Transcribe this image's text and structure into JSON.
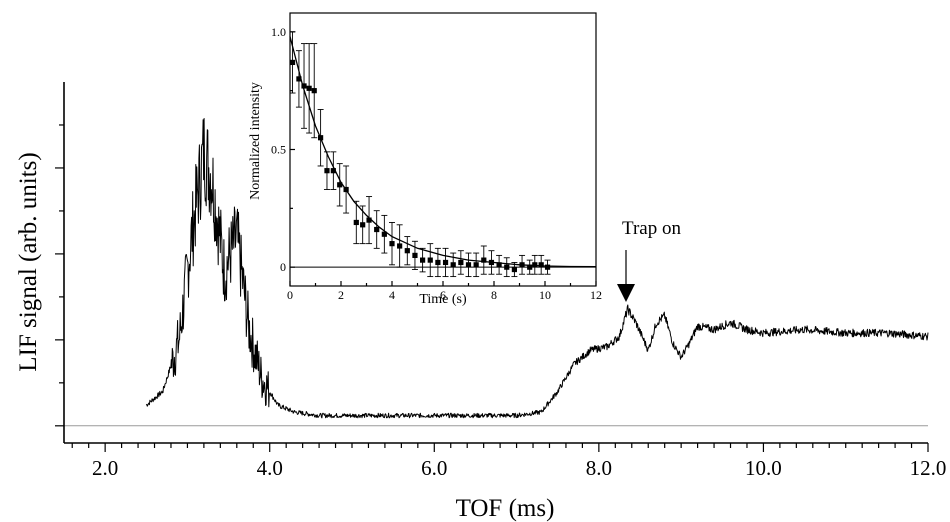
{
  "chart_data": [
    {
      "type": "line",
      "xlabel": "TOF (ms)",
      "ylabel": "LIF signal (arb. units)",
      "xlim": [
        1.5,
        12.0
      ],
      "ylim": [
        -0.05,
        1.0
      ],
      "x_ticks": [
        2.0,
        4.0,
        6.0,
        8.0,
        10.0,
        12.0
      ],
      "x_tick_labels": [
        "2.0",
        "4.0",
        "6.0",
        "8.0",
        "10.0",
        "12.0"
      ],
      "y_tick_labels_shown": false,
      "baseline": 0,
      "series": [
        {
          "x": [
            2.5,
            2.7,
            2.9,
            3.05,
            3.2,
            3.3,
            3.45,
            3.6,
            3.75,
            3.9,
            4.1,
            4.3,
            4.6,
            5.0,
            5.5,
            6.0,
            6.5,
            7.0,
            7.3,
            7.5,
            7.7,
            7.9,
            8.1,
            8.25,
            8.35,
            8.45,
            8.6,
            8.7,
            8.8,
            8.9,
            9.0,
            9.1,
            9.2,
            9.4,
            9.6,
            9.8,
            10.0,
            10.5,
            11.0,
            11.5,
            12.0
          ],
          "y": [
            0.06,
            0.1,
            0.25,
            0.55,
            0.8,
            0.72,
            0.45,
            0.55,
            0.28,
            0.14,
            0.06,
            0.04,
            0.03,
            0.03,
            0.03,
            0.03,
            0.03,
            0.03,
            0.04,
            0.1,
            0.18,
            0.22,
            0.23,
            0.26,
            0.34,
            0.3,
            0.22,
            0.3,
            0.32,
            0.24,
            0.2,
            0.24,
            0.29,
            0.28,
            0.3,
            0.28,
            0.27,
            0.28,
            0.27,
            0.27,
            0.26
          ]
        }
      ],
      "annotations": [
        {
          "text": "Trap on",
          "x": 8.35,
          "y": 0.34,
          "arrow": true
        }
      ]
    },
    {
      "type": "scatter",
      "inset": true,
      "xlabel": "Time (s)",
      "ylabel": "Normalized intensity",
      "xlim": [
        0,
        12
      ],
      "ylim": [
        -0.08,
        1.08
      ],
      "x_ticks": [
        0,
        2,
        4,
        6,
        8,
        10,
        12
      ],
      "x_tick_labels": [
        "0",
        "2",
        "4",
        "6",
        "8",
        "10",
        "12"
      ],
      "y_ticks": [
        0,
        0.5,
        1.0
      ],
      "y_tick_labels": [
        "0",
        "0.5",
        "1.0"
      ],
      "zero_line": true,
      "points": [
        {
          "x": 0.1,
          "y": 0.87,
          "err": 0.13
        },
        {
          "x": 0.35,
          "y": 0.8,
          "err": 0.12
        },
        {
          "x": 0.55,
          "y": 0.77,
          "err": 0.18
        },
        {
          "x": 0.75,
          "y": 0.76,
          "err": 0.19
        },
        {
          "x": 0.95,
          "y": 0.75,
          "err": 0.2
        },
        {
          "x": 1.2,
          "y": 0.55,
          "err": 0.12
        },
        {
          "x": 1.45,
          "y": 0.41,
          "err": 0.08
        },
        {
          "x": 1.7,
          "y": 0.41,
          "err": 0.08
        },
        {
          "x": 1.95,
          "y": 0.35,
          "err": 0.09
        },
        {
          "x": 2.2,
          "y": 0.33,
          "err": 0.1
        },
        {
          "x": 2.6,
          "y": 0.19,
          "err": 0.09
        },
        {
          "x": 2.85,
          "y": 0.18,
          "err": 0.08
        },
        {
          "x": 3.1,
          "y": 0.2,
          "err": 0.1
        },
        {
          "x": 3.4,
          "y": 0.16,
          "err": 0.08
        },
        {
          "x": 3.7,
          "y": 0.14,
          "err": 0.08
        },
        {
          "x": 4.0,
          "y": 0.1,
          "err": 0.09
        },
        {
          "x": 4.3,
          "y": 0.09,
          "err": 0.09
        },
        {
          "x": 4.6,
          "y": 0.07,
          "err": 0.06
        },
        {
          "x": 4.9,
          "y": 0.05,
          "err": 0.06
        },
        {
          "x": 5.2,
          "y": 0.03,
          "err": 0.05
        },
        {
          "x": 5.5,
          "y": 0.03,
          "err": 0.07
        },
        {
          "x": 5.8,
          "y": 0.02,
          "err": 0.06
        },
        {
          "x": 6.1,
          "y": 0.02,
          "err": 0.06
        },
        {
          "x": 6.4,
          "y": 0.01,
          "err": 0.05
        },
        {
          "x": 6.7,
          "y": 0.02,
          "err": 0.05
        },
        {
          "x": 7.0,
          "y": 0.01,
          "err": 0.05
        },
        {
          "x": 7.3,
          "y": 0.01,
          "err": 0.05
        },
        {
          "x": 7.6,
          "y": 0.03,
          "err": 0.06
        },
        {
          "x": 7.9,
          "y": 0.02,
          "err": 0.05
        },
        {
          "x": 8.2,
          "y": 0.01,
          "err": 0.04
        },
        {
          "x": 8.5,
          "y": 0.0,
          "err": 0.04
        },
        {
          "x": 8.8,
          "y": -0.01,
          "err": 0.03
        },
        {
          "x": 9.1,
          "y": 0.01,
          "err": 0.04
        },
        {
          "x": 9.4,
          "y": 0.0,
          "err": 0.03
        },
        {
          "x": 9.6,
          "y": 0.01,
          "err": 0.04
        },
        {
          "x": 9.85,
          "y": 0.01,
          "err": 0.04
        },
        {
          "x": 10.1,
          "y": 0.0,
          "err": 0.03
        }
      ],
      "fit": {
        "x": [
          0,
          0.5,
          1,
          1.5,
          2,
          2.5,
          3,
          3.5,
          4,
          5,
          6,
          7,
          8,
          9,
          10,
          11,
          12
        ],
        "y": [
          0.98,
          0.77,
          0.6,
          0.47,
          0.36,
          0.28,
          0.22,
          0.17,
          0.13,
          0.08,
          0.05,
          0.03,
          0.02,
          0.01,
          0.005,
          0.003,
          0.002
        ]
      }
    }
  ]
}
